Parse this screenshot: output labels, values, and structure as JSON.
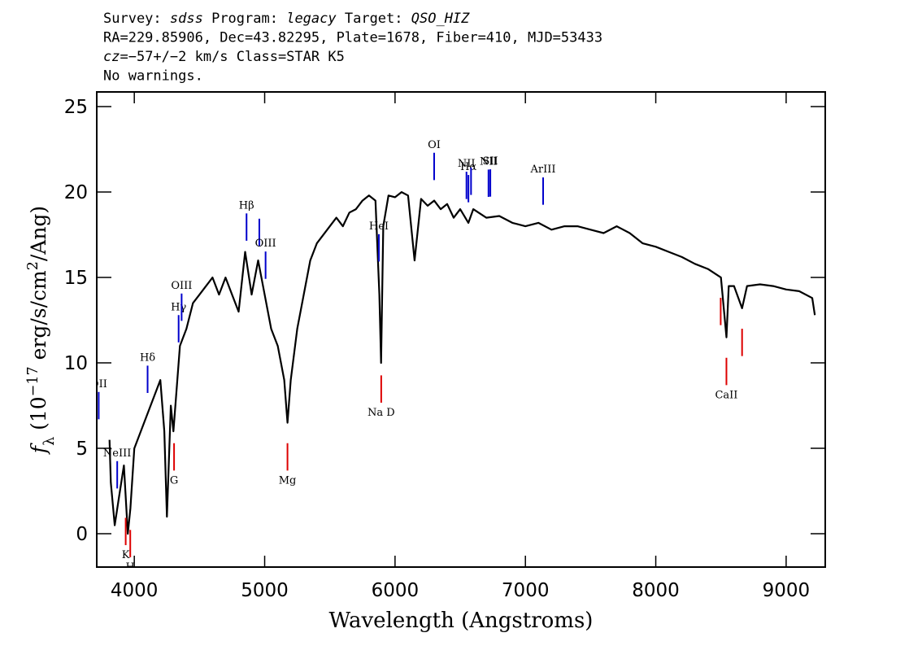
{
  "chart_data": {
    "type": "line",
    "header": [
      [
        {
          "text": "Survey: "
        },
        {
          "text": "sdss",
          "italic": true
        },
        {
          "text": " Program: "
        },
        {
          "text": "legacy",
          "italic": true
        },
        {
          "text": " Target: "
        },
        {
          "text": "QSO_HIZ",
          "italic": true
        }
      ],
      [
        {
          "text": "RA=229.85906, Dec=43.82295, Plate=1678, Fiber=410, MJD=53433"
        }
      ],
      [
        {
          "text": "cz",
          "italic": true
        },
        {
          "text": "=−57+/−2 km/s Class=STAR K5"
        }
      ],
      [
        {
          "text": "No warnings."
        }
      ]
    ],
    "xlabel": "Wavelength (Angstroms)",
    "ylabel": [
      {
        "text": "f",
        "italic": true
      },
      {
        "text": "λ",
        "sub": true
      },
      {
        "text": " (10"
      },
      {
        "text": "−17",
        "sup": true
      },
      {
        "text": " erg/s/cm"
      },
      {
        "text": "2",
        "sup": true
      },
      {
        "text": "/Ang)"
      }
    ],
    "xlim": [
      3712,
      9300
    ],
    "ylim": [
      -1.95,
      25.86
    ],
    "xticks": [
      4000,
      5000,
      6000,
      7000,
      8000,
      9000
    ],
    "yticks": [
      0,
      5,
      10,
      15,
      20,
      25
    ],
    "series": [
      {
        "color": "#000000",
        "x": [
          3810,
          3820,
          3850,
          3880,
          3920,
          3950,
          3970,
          4000,
          4050,
          4100,
          4150,
          4200,
          4230,
          4250,
          4280,
          4300,
          4350,
          4400,
          4450,
          4500,
          4550,
          4600,
          4650,
          4700,
          4750,
          4800,
          4850,
          4900,
          4950,
          5000,
          5050,
          5100,
          5150,
          5175,
          5200,
          5250,
          5300,
          5350,
          5400,
          5450,
          5500,
          5550,
          5600,
          5650,
          5700,
          5750,
          5800,
          5850,
          5880,
          5893,
          5910,
          5950,
          6000,
          6050,
          6100,
          6150,
          6200,
          6250,
          6300,
          6350,
          6400,
          6450,
          6500,
          6563,
          6600,
          6700,
          6800,
          6900,
          7000,
          7100,
          7200,
          7300,
          7400,
          7500,
          7600,
          7700,
          7800,
          7900,
          8000,
          8100,
          8200,
          8300,
          8400,
          8500,
          8542,
          8560,
          8600,
          8662,
          8700,
          8800,
          8900,
          9000,
          9100,
          9200,
          9220
        ],
        "values": [
          5.5,
          3,
          0.5,
          2,
          4,
          0,
          1.5,
          5,
          6,
          7,
          8,
          9,
          6,
          1,
          7.5,
          6,
          11,
          12,
          13.5,
          14,
          14.5,
          15,
          14,
          15,
          14,
          13,
          16.5,
          14,
          16,
          14,
          12,
          11,
          9,
          6.5,
          9,
          12,
          14,
          16,
          17,
          17.5,
          18,
          18.5,
          18,
          18.8,
          19,
          19.5,
          19.8,
          19.5,
          14,
          10,
          18,
          19.8,
          19.7,
          20,
          19.8,
          16,
          19.6,
          19.2,
          19.5,
          19,
          19.3,
          18.5,
          19,
          18.2,
          19,
          18.5,
          18.6,
          18.2,
          18,
          18.2,
          17.8,
          18,
          18,
          17.8,
          17.6,
          18,
          17.6,
          17,
          16.8,
          16.5,
          16.2,
          15.8,
          15.5,
          15,
          11.5,
          14.5,
          14.5,
          13.2,
          14.5,
          14.6,
          14.5,
          14.3,
          14.2,
          13.8,
          12.8
        ]
      }
    ],
    "emission_lines": {
      "color": "#0000cc",
      "lines": [
        {
          "x": 3727,
          "label": "OII"
        },
        {
          "x": 3869,
          "label": "NeIII"
        },
        {
          "x": 4102,
          "label": "Hδ"
        },
        {
          "x": 4340,
          "label": "Hγ"
        },
        {
          "x": 4363,
          "label": "OIII"
        },
        {
          "x": 4861,
          "label": "Hβ"
        },
        {
          "x": 4959,
          "label": null
        },
        {
          "x": 5007,
          "label": "OIII"
        },
        {
          "x": 5876,
          "label": "HeI"
        },
        {
          "x": 6300,
          "label": "OI"
        },
        {
          "x": 6548,
          "label": "NII"
        },
        {
          "x": 6563,
          "label": "Hα"
        },
        {
          "x": 6583,
          "label": null
        },
        {
          "x": 6717,
          "label": "NII"
        },
        {
          "x": 6731,
          "label": "SII"
        },
        {
          "x": 7136,
          "label": "ArIII"
        }
      ]
    },
    "absorption_lines": {
      "color": "#dd0000",
      "lines": [
        {
          "x": 3934,
          "label": "K"
        },
        {
          "x": 3969,
          "label": "H"
        },
        {
          "x": 4305,
          "label": "G"
        },
        {
          "x": 5175,
          "label": "Mg"
        },
        {
          "x": 5894,
          "label": "Na D"
        },
        {
          "x": 8498,
          "label": null
        },
        {
          "x": 8542,
          "label": "CaII"
        },
        {
          "x": 8662,
          "label": null
        }
      ]
    }
  }
}
